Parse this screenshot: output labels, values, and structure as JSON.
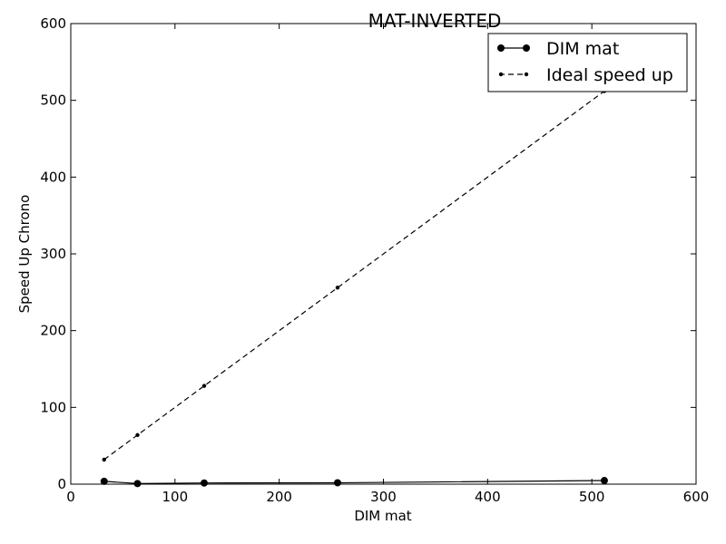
{
  "chart_data": {
    "type": "line",
    "title": "MAT-INVERTED",
    "xlabel": "DIM mat",
    "ylabel": "Speed Up Chrono",
    "xlim": [
      0,
      600
    ],
    "ylim": [
      0,
      600
    ],
    "xticks": [
      "0",
      "100",
      "200",
      "300",
      "400",
      "500",
      "600"
    ],
    "yticks": [
      "0",
      "100",
      "200",
      "300",
      "400",
      "500",
      "600"
    ],
    "grid": false,
    "legend_position": "top-right",
    "series": [
      {
        "name": "DIM mat",
        "style": "solid",
        "marker": "large-circle",
        "color": "#000000",
        "x": [
          32,
          64,
          128,
          256,
          512
        ],
        "y": [
          3.7,
          0.8,
          1.5,
          1.8,
          4.7
        ]
      },
      {
        "name": "Ideal speed up",
        "style": "dashed",
        "marker": "small-dot",
        "color": "#000000",
        "x": [
          32,
          64,
          128,
          256,
          512
        ],
        "y": [
          32,
          64,
          128,
          256,
          512
        ]
      }
    ]
  }
}
